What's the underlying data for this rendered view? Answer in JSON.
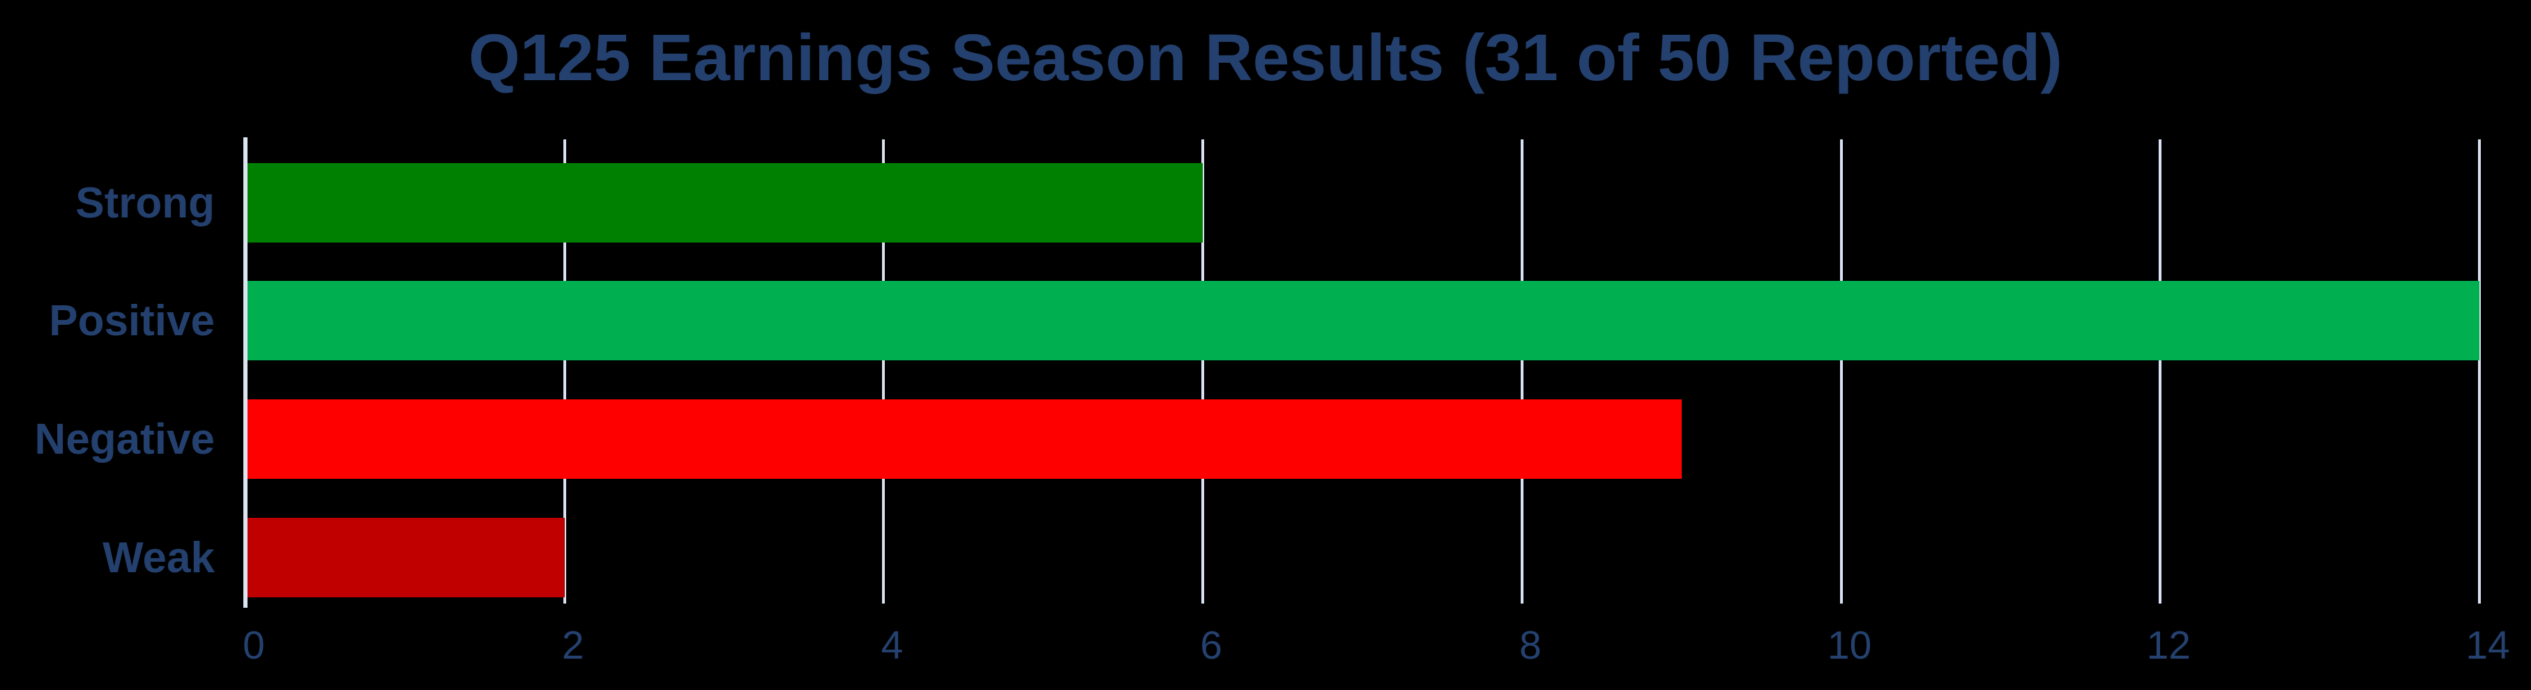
{
  "chart_data": {
    "type": "bar",
    "orientation": "horizontal",
    "title": "Q125 Earnings Season Results (31 of 50 Reported)",
    "categories": [
      "Strong",
      "Positive",
      "Negative",
      "Weak"
    ],
    "values": [
      6,
      14,
      9,
      2
    ],
    "bar_colors": [
      "#008000",
      "#00B050",
      "#FF0000",
      "#C00000"
    ],
    "xlabel": "",
    "ylabel": "",
    "xlim": [
      0,
      14
    ],
    "xticks": [
      "0",
      "2",
      "4",
      "6",
      "8",
      "10",
      "12",
      "14"
    ],
    "xtick_values": [
      0,
      2,
      4,
      6,
      8,
      10,
      12,
      14
    ],
    "grid": true,
    "legend": "none",
    "colors": {
      "background": "#000000",
      "title_text": "#24406E",
      "category_text": "#24406E",
      "tick_text": "#24416F",
      "gridline": "#D9E2F2",
      "axis_line": "#DCE4F2"
    }
  }
}
